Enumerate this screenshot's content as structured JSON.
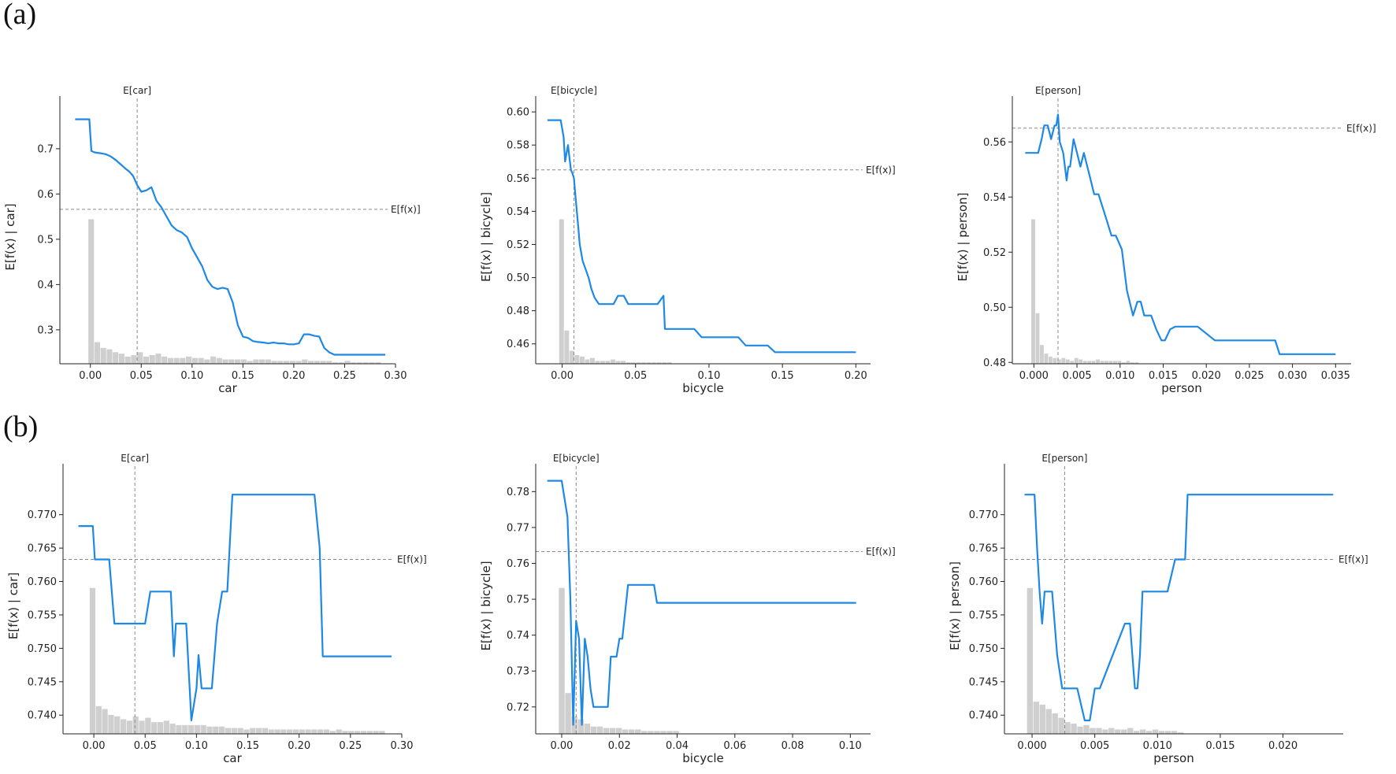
{
  "panels": [
    {
      "label": "(a)"
    },
    {
      "label": "(b)"
    }
  ],
  "colors": {
    "line": "#1e88e5",
    "hist": "#cfcfcf",
    "ref": "#8a8a8a",
    "axis": "#222222"
  },
  "chart_data": [
    {
      "type": "line",
      "panel": "(a)",
      "xlabel": "car",
      "ylabel": "E[f(x) | car]",
      "xlim": [
        -0.03,
        0.3
      ],
      "ylim": [
        0.225,
        0.785
      ],
      "xticks": [
        0,
        0.05,
        0.1,
        0.15,
        0.2,
        0.25,
        0.3
      ],
      "xtick_labels": [
        "0.00",
        "0.05",
        "0.10",
        "0.15",
        "0.20",
        "0.25",
        "0.30"
      ],
      "yticks": [
        0.3,
        0.4,
        0.5,
        0.6,
        0.7
      ],
      "ytick_labels": [
        "0.3",
        "0.4",
        "0.5",
        "0.6",
        "0.7"
      ],
      "expected_x": {
        "value": 0.046,
        "label": "E[car]"
      },
      "expected_y": {
        "value": 0.566,
        "label": "E[f(x)]"
      },
      "x": [
        -0.015,
        -0.001,
        0.001,
        0.004,
        0.01,
        0.015,
        0.02,
        0.025,
        0.03,
        0.035,
        0.038,
        0.042,
        0.046,
        0.05,
        0.055,
        0.06,
        0.065,
        0.07,
        0.075,
        0.08,
        0.085,
        0.09,
        0.095,
        0.1,
        0.105,
        0.11,
        0.115,
        0.12,
        0.125,
        0.13,
        0.135,
        0.14,
        0.145,
        0.15,
        0.155,
        0.16,
        0.165,
        0.17,
        0.175,
        0.18,
        0.185,
        0.19,
        0.195,
        0.2,
        0.205,
        0.21,
        0.215,
        0.22,
        0.225,
        0.23,
        0.235,
        0.24,
        0.29
      ],
      "y": [
        0.765,
        0.765,
        0.695,
        0.692,
        0.69,
        0.688,
        0.683,
        0.675,
        0.665,
        0.655,
        0.65,
        0.64,
        0.62,
        0.605,
        0.608,
        0.615,
        0.585,
        0.57,
        0.55,
        0.53,
        0.52,
        0.515,
        0.505,
        0.48,
        0.46,
        0.44,
        0.41,
        0.395,
        0.39,
        0.393,
        0.39,
        0.36,
        0.31,
        0.285,
        0.282,
        0.275,
        0.273,
        0.272,
        0.27,
        0.272,
        0.27,
        0.27,
        0.268,
        0.268,
        0.27,
        0.29,
        0.29,
        0.287,
        0.285,
        0.26,
        0.25,
        0.245,
        0.245
      ],
      "hist_bins": [
        -0.002,
        0.004,
        0.01,
        0.016,
        0.022,
        0.028,
        0.034,
        0.04,
        0.046,
        0.052,
        0.058,
        0.064,
        0.07,
        0.076,
        0.082,
        0.088,
        0.094,
        0.1,
        0.106,
        0.112,
        0.118,
        0.124,
        0.13,
        0.136,
        0.142,
        0.148,
        0.154,
        0.16,
        0.166,
        0.172,
        0.178,
        0.184,
        0.19,
        0.196,
        0.202,
        0.208,
        0.214,
        0.22,
        0.226,
        0.232,
        0.238,
        0.244,
        0.25,
        0.256,
        0.262,
        0.268,
        0.274,
        0.28,
        0.286
      ],
      "hist_heights": [
        1.0,
        0.15,
        0.11,
        0.1,
        0.08,
        0.07,
        0.05,
        0.06,
        0.08,
        0.05,
        0.06,
        0.07,
        0.05,
        0.04,
        0.04,
        0.04,
        0.05,
        0.04,
        0.04,
        0.03,
        0.05,
        0.04,
        0.03,
        0.03,
        0.03,
        0.03,
        0.02,
        0.03,
        0.03,
        0.03,
        0.02,
        0.02,
        0.02,
        0.02,
        0.02,
        0.03,
        0.02,
        0.02,
        0.02,
        0.02,
        0.01,
        0.01,
        0.02,
        0.01,
        0.01,
        0.01,
        0.01,
        0.01
      ]
    },
    {
      "type": "line",
      "panel": "(a)",
      "xlabel": "bicycle",
      "ylabel": "E[f(x) | bicycle]",
      "xlim": [
        -0.018,
        0.21
      ],
      "ylim": [
        0.448,
        0.601
      ],
      "xticks": [
        0,
        0.05,
        0.1,
        0.15,
        0.2
      ],
      "xtick_labels": [
        "0.00",
        "0.05",
        "0.10",
        "0.15",
        "0.20"
      ],
      "yticks": [
        0.46,
        0.48,
        0.5,
        0.52,
        0.54,
        0.56,
        0.58,
        0.6
      ],
      "ytick_labels": [
        "0.46",
        "0.48",
        "0.50",
        "0.52",
        "0.54",
        "0.56",
        "0.58",
        "0.60"
      ],
      "expected_x": {
        "value": 0.008,
        "label": "E[bicycle]"
      },
      "expected_y": {
        "value": 0.565,
        "label": "E[f(x)]"
      },
      "x": [
        -0.01,
        -0.001,
        0.001,
        0.002,
        0.003,
        0.004,
        0.005,
        0.006,
        0.007,
        0.008,
        0.009,
        0.01,
        0.011,
        0.012,
        0.014,
        0.016,
        0.018,
        0.02,
        0.022,
        0.025,
        0.028,
        0.03,
        0.035,
        0.038,
        0.042,
        0.045,
        0.05,
        0.055,
        0.06,
        0.065,
        0.069,
        0.07,
        0.09,
        0.095,
        0.1,
        0.12,
        0.125,
        0.14,
        0.145,
        0.15,
        0.17,
        0.2
      ],
      "y": [
        0.595,
        0.595,
        0.585,
        0.57,
        0.575,
        0.58,
        0.572,
        0.565,
        0.563,
        0.56,
        0.55,
        0.54,
        0.53,
        0.52,
        0.51,
        0.505,
        0.5,
        0.493,
        0.488,
        0.484,
        0.484,
        0.484,
        0.484,
        0.489,
        0.489,
        0.484,
        0.484,
        0.484,
        0.484,
        0.484,
        0.489,
        0.469,
        0.469,
        0.464,
        0.464,
        0.464,
        0.459,
        0.459,
        0.455,
        0.455,
        0.455,
        0.455
      ],
      "hist_bins": [
        -0.002,
        0.0015,
        0.005,
        0.0085,
        0.012,
        0.0155,
        0.019,
        0.0225,
        0.026,
        0.0295,
        0.033,
        0.0365,
        0.04,
        0.0435,
        0.047,
        0.0505,
        0.054,
        0.0575,
        0.061,
        0.0645,
        0.068,
        0.0715,
        0.075
      ],
      "hist_heights": [
        1.0,
        0.23,
        0.09,
        0.06,
        0.05,
        0.03,
        0.04,
        0.02,
        0.02,
        0.02,
        0.03,
        0.02,
        0.02,
        0.01,
        0.01,
        0.01,
        0.01,
        0.01,
        0.01,
        0.01,
        0.01,
        0.01
      ]
    },
    {
      "type": "line",
      "panel": "(a)",
      "xlabel": "person",
      "ylabel": "E[f(x) | person]",
      "xlim": [
        -0.0025,
        0.0368
      ],
      "ylim": [
        0.4795,
        0.5715
      ],
      "xticks": [
        0,
        0.005,
        0.01,
        0.015,
        0.02,
        0.025,
        0.03,
        0.035
      ],
      "xtick_labels": [
        "0.000",
        "0.005",
        "0.010",
        "0.015",
        "0.020",
        "0.025",
        "0.030",
        "0.035"
      ],
      "yticks": [
        0.48,
        0.5,
        0.52,
        0.54,
        0.56
      ],
      "ytick_labels": [
        "0.48",
        "0.50",
        "0.52",
        "0.54",
        "0.56"
      ],
      "expected_x": {
        "value": 0.0028,
        "label": "E[person]"
      },
      "expected_y": {
        "value": 0.565,
        "label": "E[f(x)]"
      },
      "x": [
        -0.001,
        0.0005,
        0.0009,
        0.0012,
        0.0016,
        0.002,
        0.0024,
        0.0026,
        0.0028,
        0.003,
        0.0034,
        0.0038,
        0.004,
        0.0042,
        0.0046,
        0.005,
        0.0054,
        0.0058,
        0.0062,
        0.0066,
        0.007,
        0.0075,
        0.008,
        0.0085,
        0.009,
        0.0095,
        0.0102,
        0.0108,
        0.0115,
        0.012,
        0.0124,
        0.0128,
        0.0132,
        0.0136,
        0.0142,
        0.0148,
        0.0152,
        0.0158,
        0.0164,
        0.017,
        0.019,
        0.021,
        0.0215,
        0.0255,
        0.028,
        0.0285,
        0.031,
        0.035
      ],
      "y": [
        0.556,
        0.556,
        0.561,
        0.566,
        0.566,
        0.561,
        0.566,
        0.566,
        0.57,
        0.56,
        0.556,
        0.546,
        0.551,
        0.551,
        0.561,
        0.556,
        0.551,
        0.556,
        0.551,
        0.546,
        0.541,
        0.541,
        0.536,
        0.531,
        0.526,
        0.526,
        0.521,
        0.506,
        0.497,
        0.502,
        0.502,
        0.497,
        0.497,
        0.497,
        0.492,
        0.488,
        0.488,
        0.492,
        0.493,
        0.493,
        0.493,
        0.488,
        0.488,
        0.488,
        0.488,
        0.483,
        0.483,
        0.483
      ],
      "hist_bins": [
        -0.0003,
        0.0002,
        0.0007,
        0.0012,
        0.0017,
        0.0022,
        0.0027,
        0.0032,
        0.0037,
        0.0042,
        0.0047,
        0.0052,
        0.0057,
        0.0062,
        0.0067,
        0.0072,
        0.0077,
        0.0082,
        0.0087,
        0.0092,
        0.0097,
        0.0102,
        0.0107,
        0.0112,
        0.0117,
        0.0122
      ],
      "hist_heights": [
        1.0,
        0.35,
        0.13,
        0.07,
        0.05,
        0.04,
        0.03,
        0.04,
        0.03,
        0.02,
        0.04,
        0.03,
        0.02,
        0.02,
        0.02,
        0.03,
        0.02,
        0.02,
        0.02,
        0.02,
        0.02,
        0.01,
        0.02,
        0.01,
        0.01
      ]
    },
    {
      "type": "line",
      "panel": "(b)",
      "xlabel": "car",
      "ylabel": "E[f(x) | car]",
      "xlim": [
        -0.03,
        0.3
      ],
      "ylim": [
        0.7372,
        0.7755
      ],
      "xticks": [
        0,
        0.05,
        0.1,
        0.15,
        0.2,
        0.25,
        0.3
      ],
      "xtick_labels": [
        "0.00",
        "0.05",
        "0.10",
        "0.15",
        "0.20",
        "0.25",
        "0.30"
      ],
      "yticks": [
        0.74,
        0.745,
        0.75,
        0.755,
        0.76,
        0.765,
        0.77
      ],
      "ytick_labels": [
        "0.740",
        "0.745",
        "0.750",
        "0.755",
        "0.760",
        "0.765",
        "0.770"
      ],
      "expected_x": {
        "value": 0.04,
        "label": "E[car]"
      },
      "expected_y": {
        "value": 0.7633,
        "label": "E[f(x)]"
      },
      "x": [
        -0.015,
        -0.001,
        0.001,
        0.005,
        0.015,
        0.02,
        0.025,
        0.05,
        0.055,
        0.075,
        0.078,
        0.08,
        0.082,
        0.09,
        0.095,
        0.1,
        0.102,
        0.105,
        0.11,
        0.115,
        0.12,
        0.125,
        0.13,
        0.135,
        0.14,
        0.2,
        0.215,
        0.22,
        0.223,
        0.29
      ],
      "y": [
        0.7683,
        0.7683,
        0.7633,
        0.7633,
        0.7633,
        0.7537,
        0.7537,
        0.7537,
        0.7585,
        0.7585,
        0.7488,
        0.7537,
        0.7537,
        0.7537,
        0.7392,
        0.744,
        0.749,
        0.744,
        0.744,
        0.744,
        0.7537,
        0.7585,
        0.7585,
        0.773,
        0.773,
        0.773,
        0.773,
        0.765,
        0.7488,
        0.7488
      ],
      "hist_bins": [
        -0.004,
        0.002,
        0.008,
        0.014,
        0.02,
        0.026,
        0.032,
        0.038,
        0.044,
        0.05,
        0.056,
        0.062,
        0.068,
        0.074,
        0.08,
        0.086,
        0.092,
        0.098,
        0.104,
        0.11,
        0.116,
        0.122,
        0.128,
        0.134,
        0.14,
        0.146,
        0.152,
        0.158,
        0.164,
        0.17,
        0.176,
        0.182,
        0.188,
        0.194,
        0.2,
        0.206,
        0.212,
        0.218,
        0.224,
        0.23,
        0.236,
        0.242,
        0.248,
        0.254,
        0.26,
        0.266,
        0.272,
        0.278,
        0.284
      ],
      "hist_heights": [
        1.0,
        0.19,
        0.17,
        0.13,
        0.12,
        0.1,
        0.09,
        0.12,
        0.09,
        0.11,
        0.08,
        0.08,
        0.09,
        0.07,
        0.06,
        0.06,
        0.06,
        0.06,
        0.06,
        0.05,
        0.05,
        0.05,
        0.04,
        0.04,
        0.04,
        0.03,
        0.04,
        0.04,
        0.04,
        0.03,
        0.03,
        0.03,
        0.03,
        0.03,
        0.03,
        0.03,
        0.03,
        0.03,
        0.03,
        0.02,
        0.03,
        0.02,
        0.02,
        0.02,
        0.02,
        0.02,
        0.02,
        0.02
      ]
    },
    {
      "type": "line",
      "panel": "(b)",
      "xlabel": "bicycle",
      "ylabel": "E[f(x) | bicycle]",
      "xlim": [
        -0.009,
        0.107
      ],
      "ylim": [
        0.7125,
        0.7838
      ],
      "xticks": [
        0,
        0.02,
        0.04,
        0.06,
        0.08,
        0.1
      ],
      "xtick_labels": [
        "0.00",
        "0.02",
        "0.04",
        "0.06",
        "0.08",
        "0.10"
      ],
      "yticks": [
        0.72,
        0.73,
        0.74,
        0.75,
        0.76,
        0.77,
        0.78
      ],
      "ytick_labels": [
        "0.72",
        "0.73",
        "0.74",
        "0.75",
        "0.76",
        "0.77",
        "0.78"
      ],
      "expected_x": {
        "value": 0.005,
        "label": "E[bicycle]"
      },
      "expected_y": {
        "value": 0.7633,
        "label": "E[f(x)]"
      },
      "x": [
        -0.005,
        0.0,
        0.001,
        0.002,
        0.003,
        0.004,
        0.005,
        0.006,
        0.007,
        0.008,
        0.009,
        0.01,
        0.011,
        0.012,
        0.013,
        0.016,
        0.017,
        0.019,
        0.02,
        0.021,
        0.023,
        0.032,
        0.033,
        0.04,
        0.102
      ],
      "y": [
        0.783,
        0.783,
        0.778,
        0.773,
        0.75,
        0.715,
        0.744,
        0.739,
        0.715,
        0.739,
        0.734,
        0.725,
        0.72,
        0.72,
        0.72,
        0.72,
        0.734,
        0.734,
        0.739,
        0.739,
        0.754,
        0.754,
        0.749,
        0.749,
        0.749
      ],
      "hist_bins": [
        -0.001,
        0.0012,
        0.0034,
        0.0056,
        0.0078,
        0.01,
        0.0122,
        0.0144,
        0.0166,
        0.0188,
        0.021,
        0.0232,
        0.0254,
        0.0276,
        0.0298,
        0.032,
        0.0342,
        0.0364,
        0.0386,
        0.0408
      ],
      "hist_heights": [
        1.0,
        0.28,
        0.12,
        0.1,
        0.07,
        0.05,
        0.05,
        0.04,
        0.04,
        0.04,
        0.03,
        0.03,
        0.03,
        0.02,
        0.02,
        0.02,
        0.02,
        0.02,
        0.02
      ]
    },
    {
      "type": "line",
      "panel": "(b)",
      "xlabel": "person",
      "ylabel": "E[f(x) | person]",
      "xlim": [
        -0.0022,
        0.0248
      ],
      "ylim": [
        0.7372,
        0.7755
      ],
      "xticks": [
        0,
        0.005,
        0.01,
        0.015,
        0.02
      ],
      "xtick_labels": [
        "0.000",
        "0.005",
        "0.010",
        "0.015",
        "0.020"
      ],
      "yticks": [
        0.74,
        0.745,
        0.75,
        0.755,
        0.76,
        0.765,
        0.77
      ],
      "ytick_labels": [
        "0.740",
        "0.745",
        "0.750",
        "0.755",
        "0.760",
        "0.765",
        "0.770"
      ],
      "expected_x": {
        "value": 0.0026,
        "label": "E[person]"
      },
      "expected_y": {
        "value": 0.7633,
        "label": "E[f(x)]"
      },
      "x": [
        -0.0006,
        0.0002,
        0.0004,
        0.0006,
        0.0008,
        0.001,
        0.0016,
        0.002,
        0.0024,
        0.003,
        0.0036,
        0.0042,
        0.0046,
        0.005,
        0.0054,
        0.0074,
        0.0078,
        0.0082,
        0.0084,
        0.0086,
        0.0088,
        0.0106,
        0.0108,
        0.0114,
        0.0118,
        0.0122,
        0.0124,
        0.024
      ],
      "y": [
        0.773,
        0.773,
        0.765,
        0.7585,
        0.7537,
        0.7585,
        0.7585,
        0.749,
        0.744,
        0.744,
        0.744,
        0.7392,
        0.7392,
        0.744,
        0.744,
        0.7537,
        0.7537,
        0.744,
        0.744,
        0.749,
        0.7585,
        0.7585,
        0.7585,
        0.7633,
        0.7633,
        0.7633,
        0.773,
        0.773
      ],
      "hist_bins": [
        -0.0004,
        0.0001,
        0.0006,
        0.0011,
        0.0016,
        0.0021,
        0.0026,
        0.0031,
        0.0036,
        0.0041,
        0.0046,
        0.0051,
        0.0056,
        0.0061,
        0.0066,
        0.0071,
        0.0076,
        0.0081,
        0.0086,
        0.0091,
        0.0096,
        0.0101,
        0.0106,
        0.0111,
        0.0116,
        0.0121
      ],
      "hist_heights": [
        1.0,
        0.22,
        0.2,
        0.17,
        0.14,
        0.11,
        0.08,
        0.07,
        0.05,
        0.06,
        0.04,
        0.04,
        0.03,
        0.04,
        0.03,
        0.03,
        0.04,
        0.02,
        0.03,
        0.02,
        0.03,
        0.02,
        0.02,
        0.02,
        0.01
      ]
    }
  ]
}
